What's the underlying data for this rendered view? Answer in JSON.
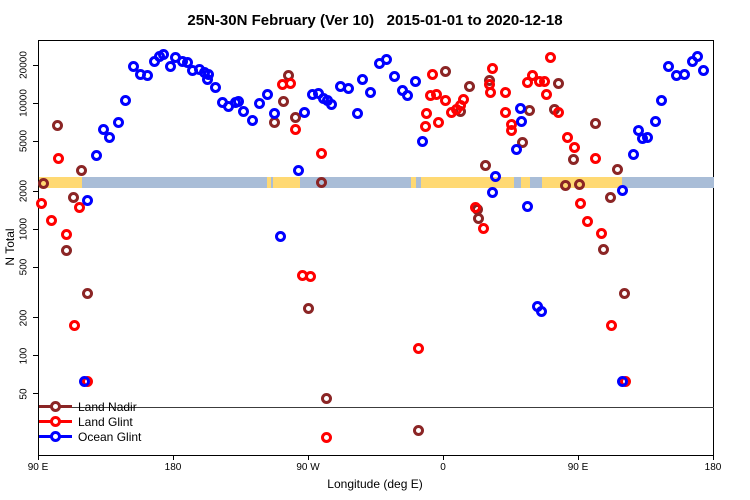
{
  "title": "25N-30N February (Ver 10)   2015-01-01 to 2020-12-18",
  "colors": {
    "land_nadir": "#8B2525",
    "land_glint": "#FF0000",
    "ocean_glint": "#0000FF",
    "band_land": "#FFD973",
    "band_ocean": "#A9BDD7",
    "reference_line": "#3c3c3c"
  },
  "legend": [
    {
      "label": "Land Nadir",
      "color_key": "land_nadir"
    },
    {
      "label": "Land Glint",
      "color_key": "land_glint"
    },
    {
      "label": "Ocean Glint",
      "color_key": "ocean_glint"
    }
  ],
  "map_band": {
    "value": 2400,
    "segments": [
      {
        "from": 90,
        "to": 118.7,
        "type": "land"
      },
      {
        "from": 118.7,
        "to": 242,
        "type": "ocean"
      },
      {
        "from": 242,
        "to": 244.7,
        "type": "land"
      },
      {
        "from": 244.7,
        "to": 246,
        "type": "ocean"
      },
      {
        "from": 246,
        "to": 264,
        "type": "land"
      },
      {
        "from": 264,
        "to": 338,
        "type": "ocean"
      },
      {
        "from": 338,
        "to": 341.3,
        "type": "land"
      },
      {
        "from": 341.3,
        "to": 344.7,
        "type": "ocean"
      },
      {
        "from": 344.7,
        "to": 406.7,
        "type": "land"
      },
      {
        "from": 406.7,
        "to": 411.3,
        "type": "ocean"
      },
      {
        "from": 411.3,
        "to": 417.3,
        "type": "land"
      },
      {
        "from": 417.3,
        "to": 425.3,
        "type": "ocean"
      },
      {
        "from": 425.3,
        "to": 478.7,
        "type": "land"
      },
      {
        "from": 478.7,
        "to": 540,
        "type": "ocean"
      }
    ]
  },
  "reference_line": {
    "value": 40
  },
  "chart_data": {
    "type": "scatter",
    "title": "25N-30N February (Ver 10)   2015-01-01 to 2020-12-18",
    "xlabel": "Longitude (deg E)",
    "ylabel": "N Total",
    "axes": {
      "x": {
        "min": 90,
        "max": 540,
        "ticks": [
          {
            "lon": 90,
            "label": "90 E"
          },
          {
            "lon": 180,
            "label": "180"
          },
          {
            "lon": 270,
            "label": "90 W"
          },
          {
            "lon": 360,
            "label": "0"
          },
          {
            "lon": 450,
            "label": "90 E"
          },
          {
            "lon": 540,
            "label": "180"
          }
        ]
      },
      "y": {
        "min": 16.3,
        "max": 31600,
        "scale": "log",
        "ticks": [
          50,
          100,
          200,
          500,
          1000,
          2000,
          5000,
          10000,
          20000
        ]
      }
    },
    "series": [
      {
        "name": "Land Nadir",
        "color_key": "land_nadir",
        "points": [
          [
            102.2,
            6820
          ],
          [
            118.5,
            2980
          ],
          [
            93.3,
            2330
          ],
          [
            113.3,
            1810
          ],
          [
            108.5,
            697
          ],
          [
            122.2,
            314
          ],
          [
            256.5,
            16900
          ],
          [
            253.1,
            10400
          ],
          [
            246.9,
            7110
          ],
          [
            260.9,
            7890
          ],
          [
            278,
            2380
          ],
          [
            269.5,
            240
          ],
          [
            281.8,
            46.6
          ],
          [
            342.9,
            26.1
          ],
          [
            361.3,
            18000
          ],
          [
            376.9,
            13900
          ],
          [
            371.3,
            8690
          ],
          [
            390.5,
            15400
          ],
          [
            417.3,
            8910
          ],
          [
            412.5,
            4930
          ],
          [
            387.5,
            3290
          ],
          [
            382.5,
            1460
          ],
          [
            383.1,
            1230
          ],
          [
            436.5,
            14500
          ],
          [
            433.5,
            9080
          ],
          [
            460.9,
            6980
          ],
          [
            446.2,
            3650
          ],
          [
            475.8,
            3040
          ],
          [
            441.3,
            2280
          ],
          [
            450.2,
            2310
          ],
          [
            470.7,
            1830
          ],
          [
            466.3,
            710
          ],
          [
            480.2,
            314
          ]
        ]
      },
      {
        "name": "Land Glint",
        "color_key": "land_glint",
        "points": [
          [
            102.9,
            3720
          ],
          [
            91.8,
            1620
          ],
          [
            117.1,
            1510
          ],
          [
            98.5,
            1200
          ],
          [
            108.2,
            929
          ],
          [
            113.8,
            177
          ],
          [
            122.5,
            63.9
          ],
          [
            252,
            14300
          ],
          [
            257.5,
            14500
          ],
          [
            261.3,
            6310
          ],
          [
            278,
            4070
          ],
          [
            265.8,
            442
          ],
          [
            270.9,
            434
          ],
          [
            281.8,
            23
          ],
          [
            342.9,
            116
          ],
          [
            352,
            17200
          ],
          [
            350.9,
            11700
          ],
          [
            355.3,
            11900
          ],
          [
            360.9,
            10700
          ],
          [
            348,
            8370
          ],
          [
            347.5,
            6700
          ],
          [
            356.5,
            7110
          ],
          [
            365.3,
            8650
          ],
          [
            368,
            9080
          ],
          [
            372.7,
            10900
          ],
          [
            370.7,
            9820
          ],
          [
            392.5,
            19200
          ],
          [
            390.2,
            14200
          ],
          [
            391.3,
            12300
          ],
          [
            401.3,
            12300
          ],
          [
            400.9,
            8530
          ],
          [
            404.7,
            6900
          ],
          [
            405.3,
            6190
          ],
          [
            415.8,
            14800
          ],
          [
            419.1,
            16700
          ],
          [
            423.5,
            15000
          ],
          [
            427.3,
            15000
          ],
          [
            430.7,
            23600
          ],
          [
            428,
            12000
          ],
          [
            380.9,
            1510
          ],
          [
            386.2,
            1040
          ],
          [
            436.5,
            8530
          ],
          [
            442.5,
            5410
          ],
          [
            446.9,
            4510
          ],
          [
            460.9,
            3720
          ],
          [
            451.3,
            1620
          ],
          [
            455.8,
            1180
          ],
          [
            465.3,
            938
          ],
          [
            471.8,
            177
          ],
          [
            481.3,
            63.9
          ]
        ]
      },
      {
        "name": "Ocean Glint",
        "color_key": "ocean_glint",
        "points": [
          [
            153.3,
            20000
          ],
          [
            157.8,
            17200
          ],
          [
            162.2,
            16700
          ],
          [
            166.7,
            21900
          ],
          [
            170,
            24000
          ],
          [
            173.3,
            24500
          ],
          [
            177.8,
            20000
          ],
          [
            181.1,
            23300
          ],
          [
            185.5,
            21900
          ],
          [
            188.9,
            21200
          ],
          [
            192.2,
            18300
          ],
          [
            196.7,
            18800
          ],
          [
            200,
            17700
          ],
          [
            202.2,
            15700
          ],
          [
            147.8,
            10600
          ],
          [
            142.9,
            7200
          ],
          [
            133.3,
            6310
          ],
          [
            136.7,
            5400
          ],
          [
            128.2,
            3920
          ],
          [
            122.2,
            1730
          ],
          [
            120.5,
            63.9
          ],
          [
            203.1,
            17200
          ],
          [
            207.5,
            13500
          ],
          [
            212.5,
            10200
          ],
          [
            216.5,
            9530
          ],
          [
            220.9,
            10200
          ],
          [
            223.1,
            10400
          ],
          [
            226.5,
            8690
          ],
          [
            232.5,
            7400
          ],
          [
            236.9,
            10100
          ],
          [
            242,
            11900
          ],
          [
            247.3,
            8380
          ],
          [
            267.3,
            8630
          ],
          [
            272.5,
            11900
          ],
          [
            276.2,
            12200
          ],
          [
            279.5,
            11100
          ],
          [
            282,
            10600
          ],
          [
            285.3,
            9970
          ],
          [
            291.3,
            13900
          ],
          [
            296.5,
            13200
          ],
          [
            302.5,
            8380
          ],
          [
            305.8,
            15700
          ],
          [
            311.3,
            12300
          ],
          [
            263.1,
            2960
          ],
          [
            250.7,
            890
          ],
          [
            316.9,
            21000
          ],
          [
            321.8,
            22400
          ],
          [
            327.3,
            16500
          ],
          [
            341.3,
            15000
          ],
          [
            332.5,
            12900
          ],
          [
            335.8,
            11700
          ],
          [
            345.8,
            5010
          ],
          [
            410.7,
            9200
          ],
          [
            411.8,
            7240
          ],
          [
            408.5,
            4370
          ],
          [
            394.2,
            2690
          ],
          [
            392.5,
            1980
          ],
          [
            415.8,
            1550
          ],
          [
            509.8,
            20000
          ],
          [
            514.7,
            16700
          ],
          [
            520.2,
            17200
          ],
          [
            525.8,
            21700
          ],
          [
            529.1,
            24000
          ],
          [
            532.9,
            18500
          ],
          [
            505.3,
            10600
          ],
          [
            501.3,
            7240
          ],
          [
            489.8,
            6210
          ],
          [
            492.5,
            5310
          ],
          [
            495.8,
            5400
          ],
          [
            486.2,
            3990
          ],
          [
            478.7,
            2060
          ],
          [
            422,
            247
          ],
          [
            425.1,
            229
          ],
          [
            478.7,
            63.9
          ]
        ]
      }
    ]
  }
}
